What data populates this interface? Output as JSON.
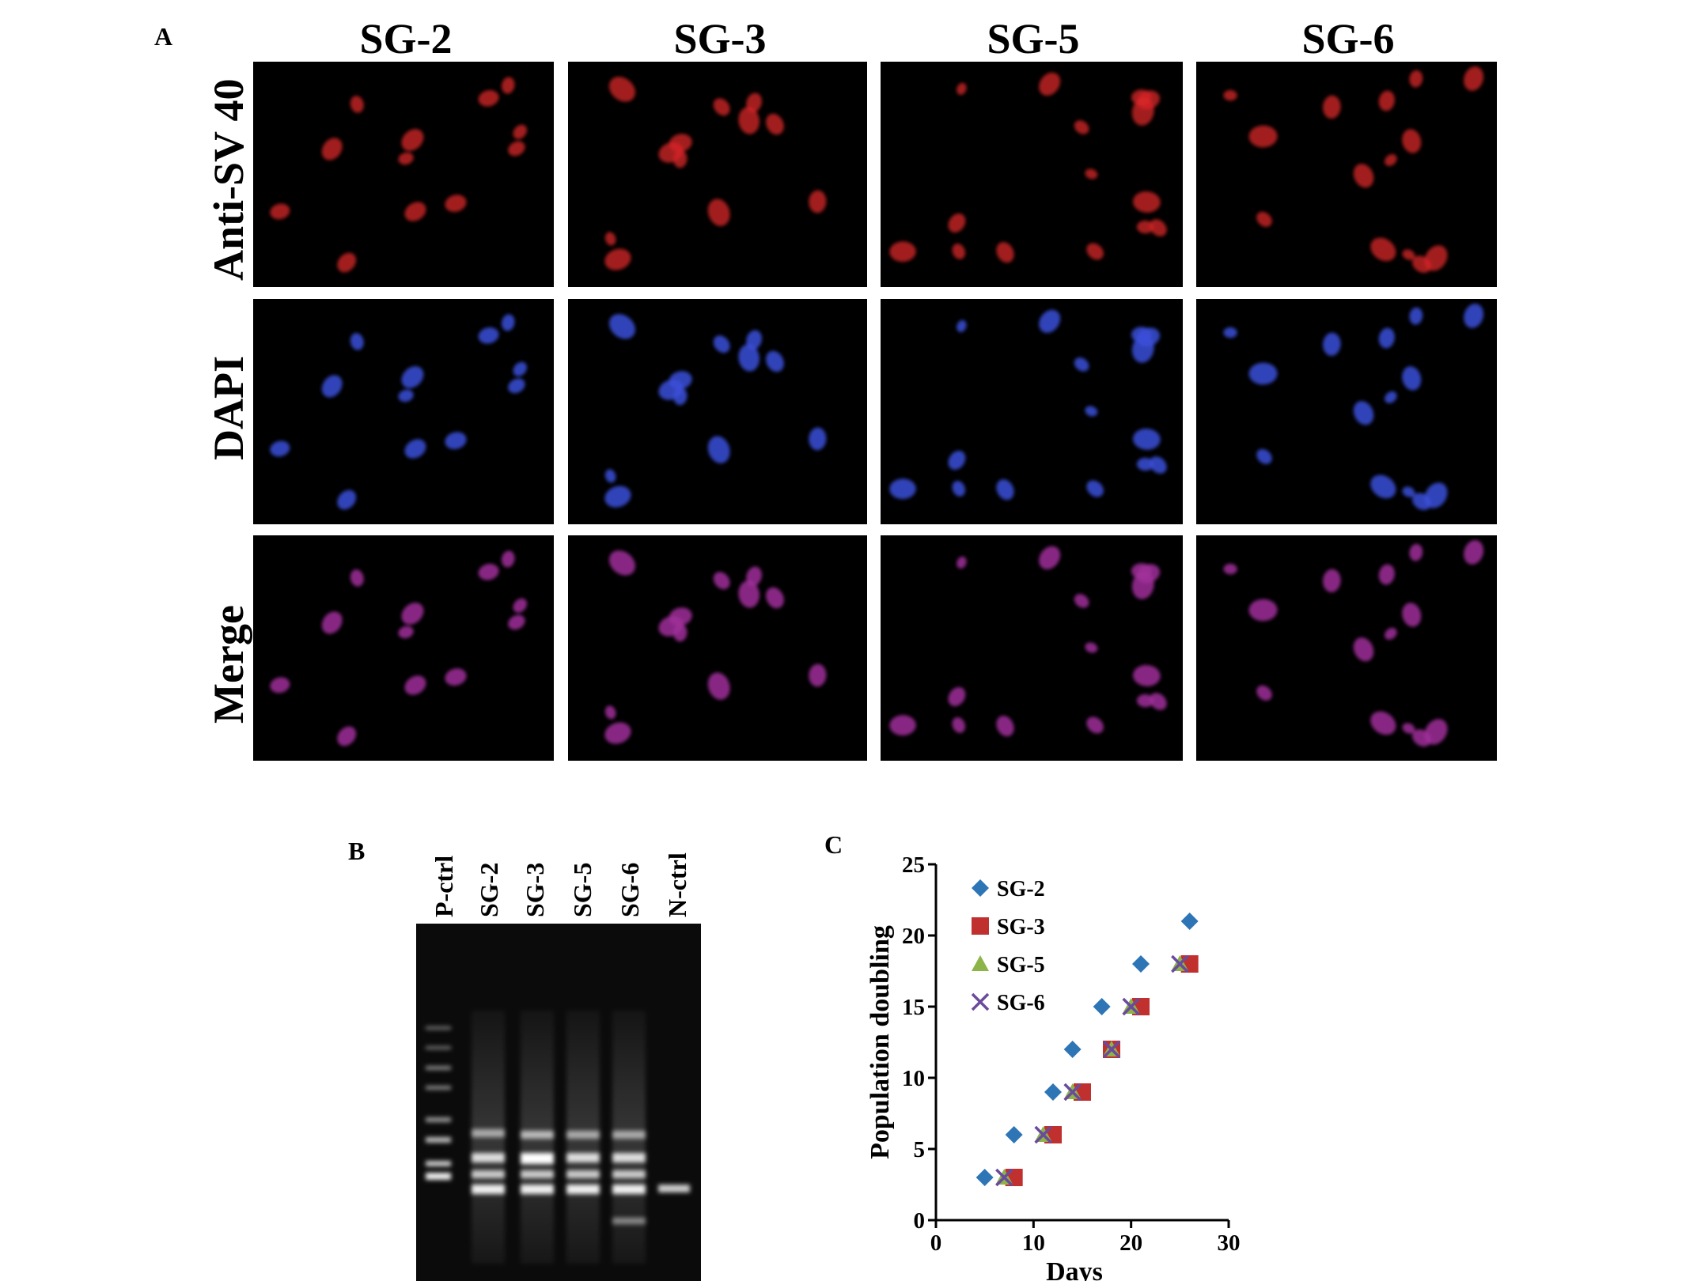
{
  "panels": {
    "a": {
      "letter": "A",
      "columns": [
        "SG-2",
        "SG-3",
        "SG-5",
        "SG-6"
      ],
      "rows": [
        "Anti-SV 40",
        "DAPI",
        "Merge"
      ]
    },
    "b": {
      "letter": "B",
      "lanes": [
        "P-ctrl",
        "SG-2",
        "SG-3",
        "SG-5",
        "SG-6",
        "N-ctrl"
      ]
    },
    "c": {
      "letter": "C"
    }
  },
  "chart_data": {
    "type": "scatter",
    "xlabel": "Days",
    "ylabel": "Population doubling",
    "xlim": [
      0,
      30
    ],
    "ylim": [
      0,
      25
    ],
    "xticks": [
      0,
      10,
      20,
      30
    ],
    "yticks": [
      0,
      5,
      10,
      15,
      20,
      25
    ],
    "legend_position": "top-left",
    "series": [
      {
        "name": "SG-2",
        "marker": "diamond",
        "color": "#2e75b6",
        "x": [
          5,
          8,
          12,
          14,
          17,
          21,
          26
        ],
        "y": [
          3,
          6,
          9,
          12,
          15,
          18,
          21
        ]
      },
      {
        "name": "SG-3",
        "marker": "square",
        "color": "#c0302e",
        "x": [
          8,
          12,
          15,
          18,
          21,
          26
        ],
        "y": [
          3,
          6,
          9,
          12,
          15,
          18
        ]
      },
      {
        "name": "SG-5",
        "marker": "triangle",
        "color": "#8cb448",
        "x": [
          7,
          11,
          14,
          18,
          20,
          25
        ],
        "y": [
          3,
          6,
          9,
          12,
          15,
          18
        ]
      },
      {
        "name": "SG-6",
        "marker": "x",
        "color": "#6a4a9c",
        "x": [
          7,
          11,
          14,
          18,
          20,
          25
        ],
        "y": [
          3,
          6,
          9,
          12,
          15,
          18
        ]
      }
    ]
  }
}
